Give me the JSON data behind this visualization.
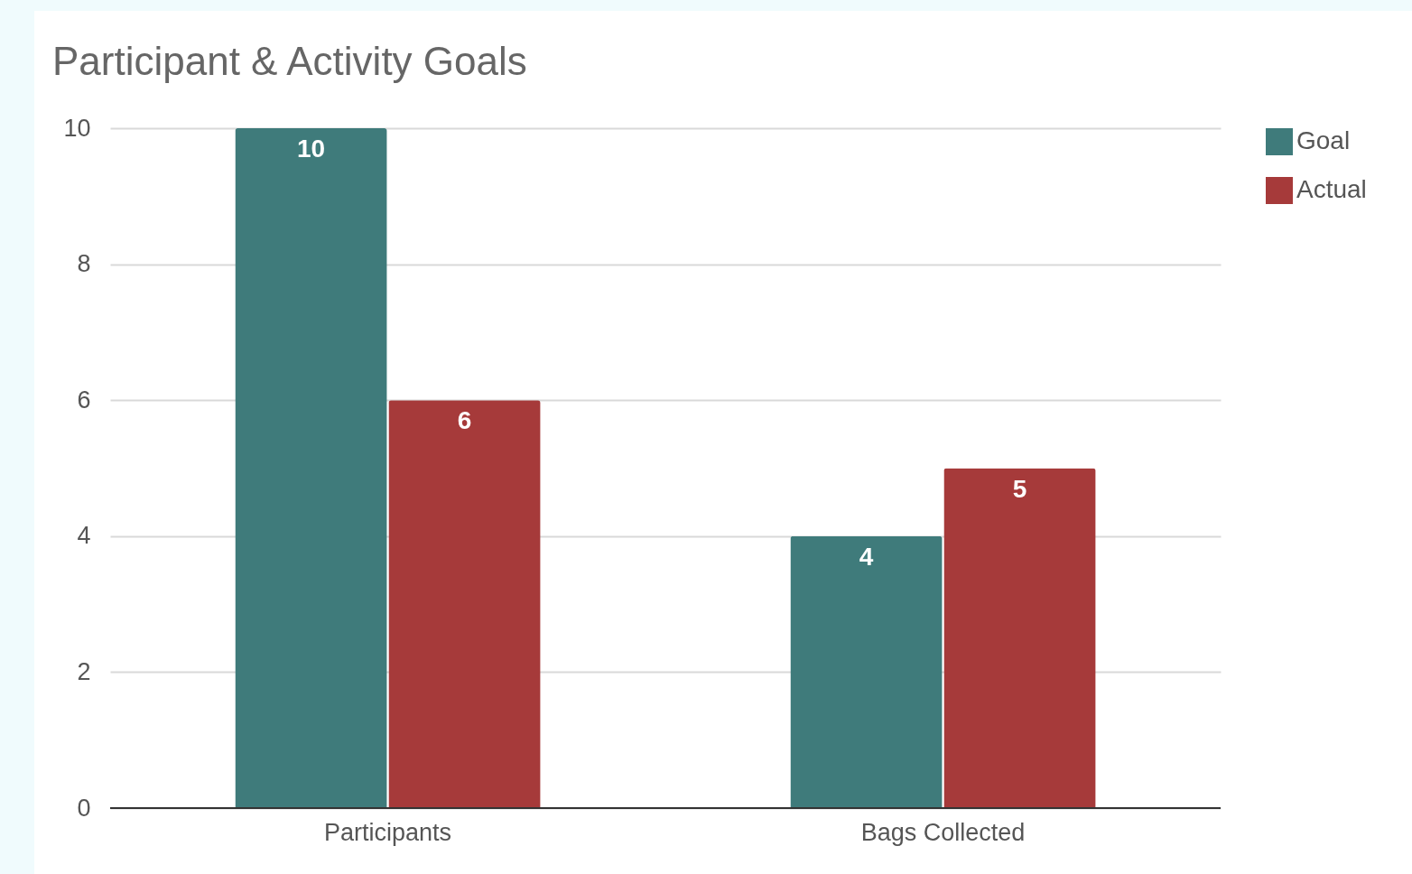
{
  "chart_data": {
    "type": "bar",
    "title": "Participant & Activity Goals",
    "categories": [
      "Participants",
      "Bags Collected"
    ],
    "series": [
      {
        "name": "Goal",
        "color": "#3f7b7b",
        "values": [
          10,
          4
        ]
      },
      {
        "name": "Actual",
        "color": "#a63a3a",
        "values": [
          6,
          5
        ]
      }
    ],
    "ylim": [
      0,
      10
    ],
    "yticks": [
      0,
      2,
      4,
      6,
      8,
      10
    ],
    "grid": "y",
    "legend": "top right",
    "data_labels": true
  }
}
